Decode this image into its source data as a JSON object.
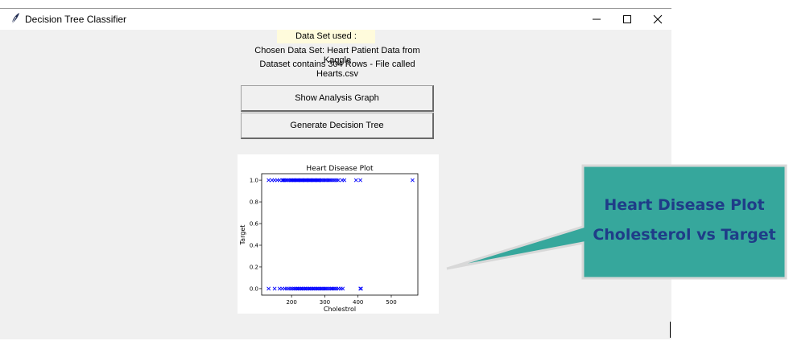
{
  "window": {
    "title": "Decision Tree Classifier"
  },
  "dataset": {
    "label": "Data Set used :",
    "line1": "Chosen Data Set: Heart Patient Data from Kaggle",
    "line2": "Dataset contains 304 Rows - File called Hearts.csv"
  },
  "buttons": {
    "graph": "Show Analysis Graph",
    "tree": "Generate Decision Tree"
  },
  "callout": {
    "line1": "Heart Disease Plot",
    "line2": "Cholesterol vs Target",
    "fill": "#36a79c",
    "text_color": "#1f3c88"
  },
  "chart_data": {
    "type": "scatter",
    "title": "Heart Disease Plot",
    "xlabel": "Cholestrol",
    "ylabel": "Target",
    "xlim": [
      110,
      580
    ],
    "ylim": [
      -0.06,
      1.06
    ],
    "xticks": [
      200,
      300,
      400,
      500
    ],
    "yticks": [
      0.0,
      0.2,
      0.4,
      0.6,
      0.8,
      1.0
    ],
    "marker": "x",
    "color": "#0000ff",
    "series": [
      {
        "y": 1,
        "x": [
          131,
          141,
          149,
          157,
          164,
          172,
          175,
          178,
          182,
          186,
          190,
          194,
          198,
          200,
          203,
          206,
          209,
          212,
          215,
          218,
          221,
          224,
          227,
          230,
          233,
          236,
          239,
          242,
          245,
          248,
          251,
          254,
          257,
          260,
          263,
          266,
          269,
          272,
          275,
          278,
          281,
          284,
          288,
          292,
          296,
          300,
          304,
          308,
          312,
          316,
          320,
          325,
          330,
          336,
          341,
          352,
          359,
          394,
          407,
          564
        ]
      },
      {
        "y": 0,
        "x": [
          131,
          149,
          164,
          172,
          180,
          186,
          192,
          198,
          203,
          208,
          212,
          216,
          220,
          224,
          228,
          232,
          236,
          240,
          244,
          248,
          252,
          256,
          260,
          264,
          268,
          272,
          276,
          280,
          284,
          288,
          292,
          296,
          300,
          304,
          308,
          313,
          318,
          322,
          326,
          330,
          335,
          341,
          348,
          354,
          407,
          409
        ]
      }
    ]
  }
}
